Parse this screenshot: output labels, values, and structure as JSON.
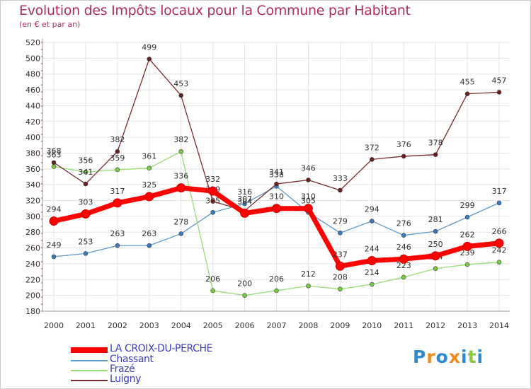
{
  "header": {
    "title": "Evolution des Impôts locaux pour la Commune par Habitant",
    "subtitle": "(en € et par an)"
  },
  "chart_data": {
    "type": "line",
    "title": "Evolution des Impôts locaux pour la Commune par Habitant",
    "subtitle": "(en € et par an)",
    "xlabel": "",
    "ylabel": "",
    "categories": [
      "2000",
      "2001",
      "2002",
      "2003",
      "2004",
      "2005",
      "2006",
      "2007",
      "2008",
      "2009",
      "2010",
      "2011",
      "2012",
      "2013",
      "2014"
    ],
    "ylim": [
      180,
      520
    ],
    "yticks": [
      180,
      200,
      220,
      240,
      260,
      280,
      300,
      320,
      340,
      360,
      380,
      400,
      420,
      440,
      460,
      480,
      500,
      520
    ],
    "grid": true,
    "legend_position": "bottom-left",
    "series": [
      {
        "name": "LA CROIX-DU-PERCHE",
        "color": "#ff0000",
        "marker_color": "#ff0000",
        "values": [
          294,
          303,
          317,
          325,
          336,
          332,
          304,
          310,
          310,
          237,
          244,
          246,
          250,
          262,
          266
        ]
      },
      {
        "name": "Chassant",
        "color": "#5f9ccb",
        "marker_color": "#3a7bbf",
        "values": [
          249,
          253,
          263,
          263,
          278,
          305,
          316,
          338,
          305,
          279,
          294,
          276,
          281,
          299,
          317
        ]
      },
      {
        "name": "Frazé",
        "color": "#99dd77",
        "marker_color": "#77cc44",
        "values": [
          363,
          356,
          359,
          361,
          382,
          206,
          200,
          206,
          212,
          208,
          214,
          223,
          234,
          239,
          242
        ]
      },
      {
        "name": "Luigny",
        "color": "#7b2d2d",
        "marker_color": "#6b1f1f",
        "values": [
          368,
          341,
          382,
          499,
          453,
          319,
          307,
          341,
          346,
          333,
          372,
          376,
          378,
          455,
          457
        ]
      }
    ],
    "point_labels": [
      {
        "series": 0,
        "labels": [
          "294",
          "303",
          "317",
          "325",
          "336",
          "332",
          "304",
          "310",
          "310",
          "237",
          "244",
          "246",
          "250",
          "262",
          "266"
        ]
      },
      {
        "series": 1,
        "labels": [
          "249",
          "253",
          "263",
          "263",
          "278",
          "305",
          "316",
          "338",
          "305",
          "279",
          "294",
          "276",
          "281",
          "299",
          "317"
        ]
      },
      {
        "series": 2,
        "labels": [
          "363",
          "356",
          "359",
          "361",
          "382",
          "206",
          "200",
          "206",
          "212",
          "208",
          "214",
          "223",
          "234",
          "239",
          "242"
        ]
      },
      {
        "series": 3,
        "labels": [
          "368",
          "341",
          "382",
          "499",
          "453",
          "319",
          "307",
          "341",
          "346",
          "333",
          "372",
          "376",
          "378",
          "455",
          "457"
        ]
      }
    ]
  },
  "legend": {
    "items": [
      {
        "label": "LA CROIX-DU-PERCHE",
        "color": "#ff0000"
      },
      {
        "label": "Chassant",
        "color": "#5f9ccb"
      },
      {
        "label": "Frazé",
        "color": "#99dd77"
      },
      {
        "label": "Luigny",
        "color": "#7b2d2d"
      }
    ]
  },
  "logo": {
    "letters": [
      "P",
      "r",
      "o",
      "x",
      "i",
      "t",
      "i"
    ],
    "colors": [
      "#2a8bd6",
      "#f08a1c",
      "#2a8bd6",
      "#f08a1c",
      "#2a8bd6",
      "#8cc63f",
      "#2a8bd6"
    ]
  }
}
